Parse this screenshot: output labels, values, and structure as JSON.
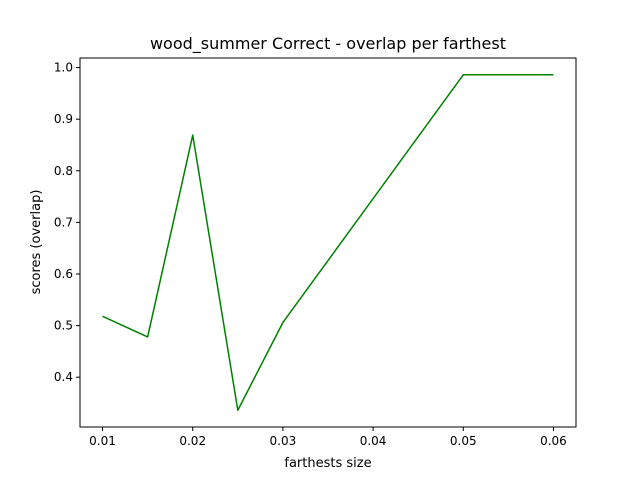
{
  "chart_data": {
    "type": "line",
    "title": "wood_summer Correct - overlap per farthest",
    "xlabel": "farthests size",
    "ylabel": "scores (overlap)",
    "x": [
      0.01,
      0.015,
      0.02,
      0.025,
      0.03,
      0.05,
      0.06
    ],
    "series": [
      {
        "values": [
          0.518,
          0.478,
          0.869,
          0.336,
          0.506,
          0.986,
          0.986
        ],
        "color": "#008000"
      }
    ],
    "xticks": [
      0.01,
      0.02,
      0.03,
      0.04,
      0.05,
      0.06
    ],
    "xtick_labels": [
      "0.01",
      "0.02",
      "0.03",
      "0.04",
      "0.05",
      "0.06"
    ],
    "yticks": [
      0.4,
      0.5,
      0.6,
      0.7,
      0.8,
      0.9,
      1.0
    ],
    "ytick_labels": [
      "0.4",
      "0.5",
      "0.6",
      "0.7",
      "0.8",
      "0.9",
      "1.0"
    ],
    "xlim": [
      0.0075,
      0.0625
    ],
    "ylim": [
      0.3035,
      1.0185
    ],
    "grid": false,
    "legend": false
  }
}
